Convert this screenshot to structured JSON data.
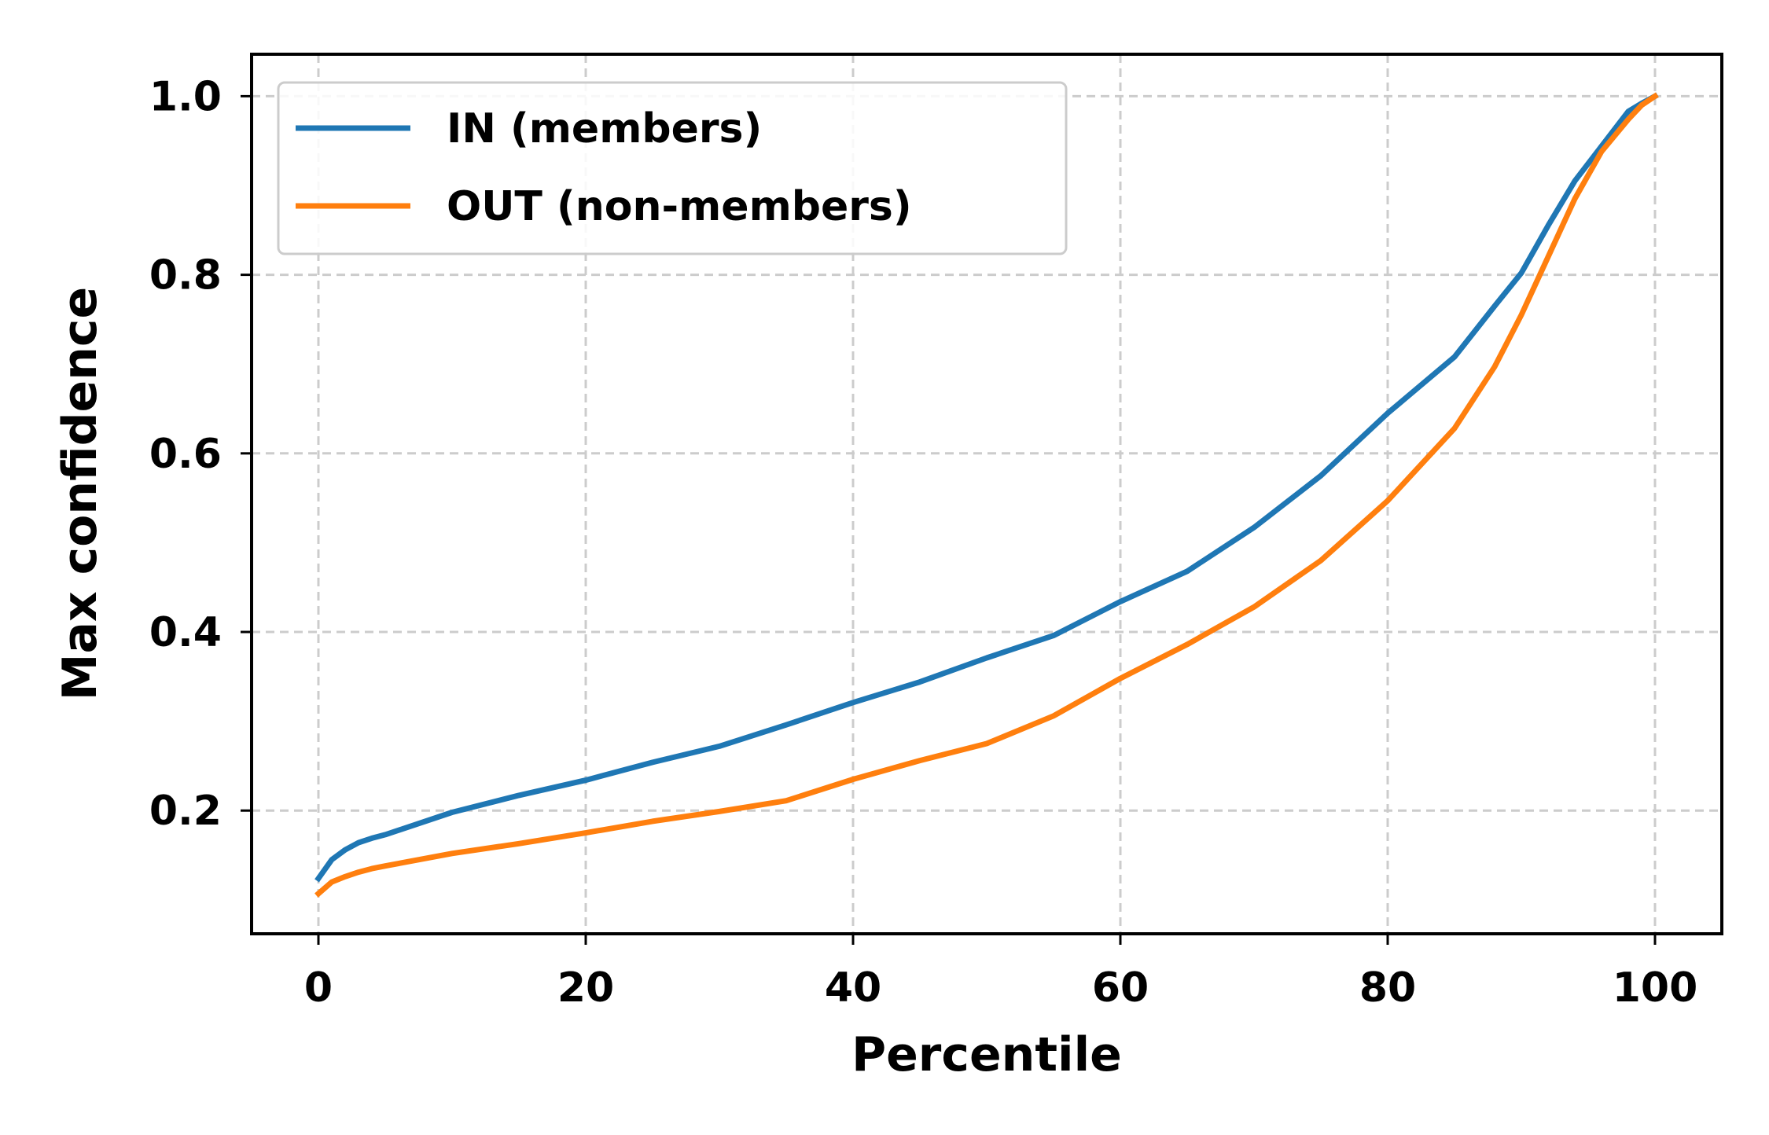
{
  "chart_data": {
    "type": "line",
    "title": "",
    "xlabel": "Percentile",
    "ylabel": "Max confidence",
    "xlim": [
      -5,
      105
    ],
    "ylim": [
      0.062,
      1.047
    ],
    "xticks": [
      0,
      20,
      40,
      60,
      80,
      100
    ],
    "yticks": [
      0.2,
      0.4,
      0.6,
      0.8,
      1.0
    ],
    "xtick_labels": [
      "0",
      "20",
      "40",
      "60",
      "80",
      "100"
    ],
    "ytick_labels": [
      "0.2",
      "0.4",
      "0.6",
      "0.8",
      "1.0"
    ],
    "grid": true,
    "grid_style": "dashed",
    "legend_position": "top-left",
    "x": [
      0,
      1,
      2,
      3,
      4,
      5,
      10,
      15,
      20,
      25,
      30,
      35,
      40,
      45,
      50,
      55,
      60,
      65,
      70,
      75,
      80,
      85,
      88,
      90,
      92,
      94,
      96,
      98,
      99,
      100
    ],
    "series": [
      {
        "name": "IN (members)",
        "color": "#1f77b4",
        "values": [
          0.124,
          0.145,
          0.156,
          0.164,
          0.169,
          0.173,
          0.198,
          0.217,
          0.234,
          0.254,
          0.272,
          0.296,
          0.321,
          0.344,
          0.371,
          0.396,
          0.434,
          0.468,
          0.517,
          0.575,
          0.645,
          0.708,
          0.765,
          0.802,
          0.855,
          0.905,
          0.944,
          0.983,
          0.992,
          1.0
        ]
      },
      {
        "name": "OUT (non-members)",
        "color": "#ff7f0e",
        "values": [
          0.107,
          0.12,
          0.126,
          0.131,
          0.135,
          0.138,
          0.152,
          0.163,
          0.175,
          0.188,
          0.199,
          0.211,
          0.235,
          0.256,
          0.275,
          0.306,
          0.348,
          0.386,
          0.428,
          0.48,
          0.547,
          0.628,
          0.697,
          0.755,
          0.82,
          0.885,
          0.938,
          0.974,
          0.99,
          1.0
        ]
      }
    ]
  }
}
